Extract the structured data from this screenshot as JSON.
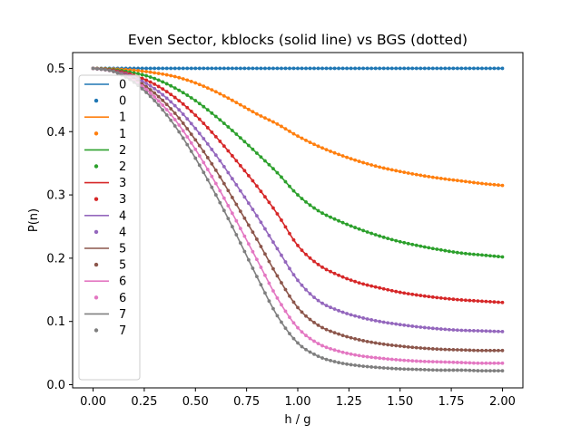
{
  "chart_data": {
    "type": "line",
    "title": "Even Sector, kblocks (solid line) vs BGS (dotted)",
    "xlabel": "h / g",
    "ylabel": "P(n)",
    "xlim": [
      -0.1,
      2.1
    ],
    "ylim": [
      -0.005,
      0.525
    ],
    "xticks": [
      "0.00",
      "0.25",
      "0.50",
      "0.75",
      "1.00",
      "1.25",
      "1.50",
      "1.75",
      "2.00"
    ],
    "yticks": [
      "0.0",
      "0.1",
      "0.2",
      "0.3",
      "0.4",
      "0.5"
    ],
    "legend_position": "left",
    "legend_entries": [
      {
        "label": "0",
        "style": "line",
        "series": 0
      },
      {
        "label": "0",
        "style": "dot",
        "series": 0
      },
      {
        "label": "1",
        "style": "line",
        "series": 1
      },
      {
        "label": "1",
        "style": "dot",
        "series": 1
      },
      {
        "label": "2",
        "style": "line",
        "series": 2
      },
      {
        "label": "2",
        "style": "dot",
        "series": 2
      },
      {
        "label": "3",
        "style": "line",
        "series": 3
      },
      {
        "label": "3",
        "style": "dot",
        "series": 3
      },
      {
        "label": "4",
        "style": "line",
        "series": 4
      },
      {
        "label": "4",
        "style": "dot",
        "series": 4
      },
      {
        "label": "5",
        "style": "line",
        "series": 5
      },
      {
        "label": "5",
        "style": "dot",
        "series": 5
      },
      {
        "label": "6",
        "style": "line",
        "series": 6
      },
      {
        "label": "6",
        "style": "dot",
        "series": 6
      },
      {
        "label": "7",
        "style": "line",
        "series": 7
      },
      {
        "label": "7",
        "style": "dot",
        "series": 7
      }
    ],
    "x": [
      0.0,
      0.1,
      0.2,
      0.3,
      0.4,
      0.5,
      0.6,
      0.7,
      0.8,
      0.9,
      1.0,
      1.1,
      1.2,
      1.3,
      1.4,
      1.5,
      1.6,
      1.7,
      1.8,
      1.9,
      2.0
    ],
    "series": [
      {
        "name": "0",
        "color": "#1f77b4",
        "values": [
          0.5,
          0.5,
          0.5,
          0.5,
          0.5,
          0.5,
          0.5,
          0.5,
          0.5,
          0.5,
          0.5,
          0.5,
          0.5,
          0.5,
          0.5,
          0.5,
          0.5,
          0.5,
          0.5,
          0.5,
          0.5
        ]
      },
      {
        "name": "1",
        "color": "#ff7f0e",
        "values": [
          0.5,
          0.499,
          0.497,
          0.493,
          0.487,
          0.477,
          0.463,
          0.446,
          0.428,
          0.412,
          0.393,
          0.377,
          0.364,
          0.353,
          0.344,
          0.337,
          0.331,
          0.326,
          0.322,
          0.318,
          0.315
        ]
      },
      {
        "name": "2",
        "color": "#2ca02c",
        "values": [
          0.5,
          0.498,
          0.493,
          0.484,
          0.469,
          0.449,
          0.424,
          0.396,
          0.366,
          0.335,
          0.3,
          0.275,
          0.259,
          0.246,
          0.235,
          0.226,
          0.219,
          0.213,
          0.208,
          0.205,
          0.202
        ]
      },
      {
        "name": "3",
        "color": "#d62728",
        "values": [
          0.5,
          0.497,
          0.489,
          0.475,
          0.454,
          0.426,
          0.392,
          0.354,
          0.314,
          0.27,
          0.22,
          0.19,
          0.173,
          0.161,
          0.153,
          0.146,
          0.141,
          0.137,
          0.134,
          0.132,
          0.13
        ]
      },
      {
        "name": "4",
        "color": "#9467bd",
        "values": [
          0.5,
          0.496,
          0.486,
          0.468,
          0.441,
          0.405,
          0.363,
          0.316,
          0.267,
          0.215,
          0.165,
          0.133,
          0.117,
          0.107,
          0.1,
          0.095,
          0.091,
          0.088,
          0.086,
          0.085,
          0.084
        ]
      },
      {
        "name": "5",
        "color": "#8c564b",
        "values": [
          0.5,
          0.496,
          0.483,
          0.461,
          0.429,
          0.387,
          0.339,
          0.285,
          0.23,
          0.172,
          0.122,
          0.094,
          0.08,
          0.071,
          0.065,
          0.061,
          0.058,
          0.056,
          0.055,
          0.054,
          0.054
        ]
      },
      {
        "name": "6",
        "color": "#e377c2",
        "values": [
          0.5,
          0.495,
          0.481,
          0.455,
          0.419,
          0.372,
          0.318,
          0.259,
          0.198,
          0.137,
          0.09,
          0.065,
          0.053,
          0.046,
          0.042,
          0.039,
          0.037,
          0.036,
          0.035,
          0.034,
          0.034
        ]
      },
      {
        "name": "7",
        "color": "#7f7f7f",
        "values": [
          0.5,
          0.495,
          0.478,
          0.449,
          0.409,
          0.358,
          0.3,
          0.237,
          0.171,
          0.109,
          0.066,
          0.045,
          0.035,
          0.03,
          0.027,
          0.025,
          0.024,
          0.023,
          0.023,
          0.022,
          0.022
        ]
      }
    ]
  }
}
